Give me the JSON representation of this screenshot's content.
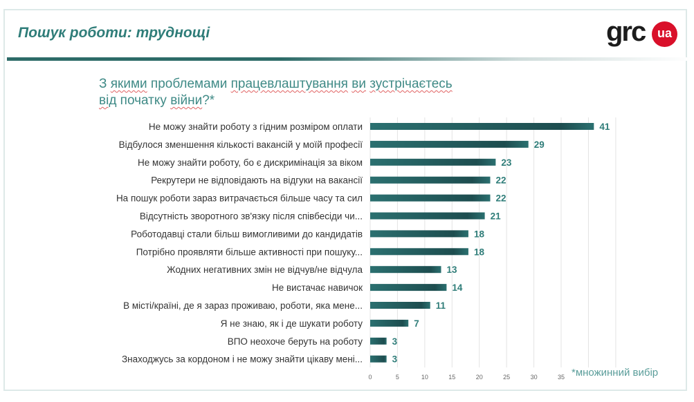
{
  "header": {
    "title": "Пошук роботи: труднощі",
    "logo_text": "grc",
    "logo_badge": "ua"
  },
  "question": {
    "line1_parts": [
      "З ",
      "якими",
      " проблемами ",
      "працевлаштування",
      " ",
      "ви",
      " ",
      "зустрічаєтесь"
    ],
    "line2_parts": [
      "від",
      " початку ",
      "війни",
      "?*"
    ]
  },
  "note": "*множинний вибір",
  "colors": {
    "bar": "#2b7070",
    "bar_highlight": "#1d4d4f",
    "label": "#2f7d79",
    "accent": "#d9102a"
  },
  "chart_data": {
    "type": "bar",
    "orientation": "horizontal",
    "categories": [
      "Не можу знайти роботу з гідним розміром оплати",
      "Відбулося зменшення кількості вакансій у моїй професії",
      "Не можу знайти роботу, бо є дискримінація за віком",
      "Рекрутери не відповідають на відгуки на вакансії",
      "На пошук роботи зараз витрачається більше часу та сил",
      "Відсутність зворотного зв'язку після співбесіди чи...",
      "Роботодавці стали більш вимогливими до кандидатів",
      "Потрібно проявляти більше активності при пошуку...",
      "Жодних негативних змін не відчув/не відчула",
      "Не вистачає навичок",
      "В місті/країні, де я зараз проживаю, роботи, яка мене...",
      "Я не знаю, як і де шукати роботу",
      "ВПО неохоче беруть на роботу",
      "Знаходжусь за кордоном і не можу знайти цікаву мені..."
    ],
    "values": [
      41,
      29,
      23,
      22,
      22,
      21,
      18,
      18,
      13,
      14,
      11,
      7,
      3,
      3
    ],
    "xticks": [
      "0",
      "5",
      "10",
      "15",
      "20",
      "25",
      "30",
      "35"
    ],
    "xlim": [
      0,
      45
    ],
    "grid": true
  }
}
